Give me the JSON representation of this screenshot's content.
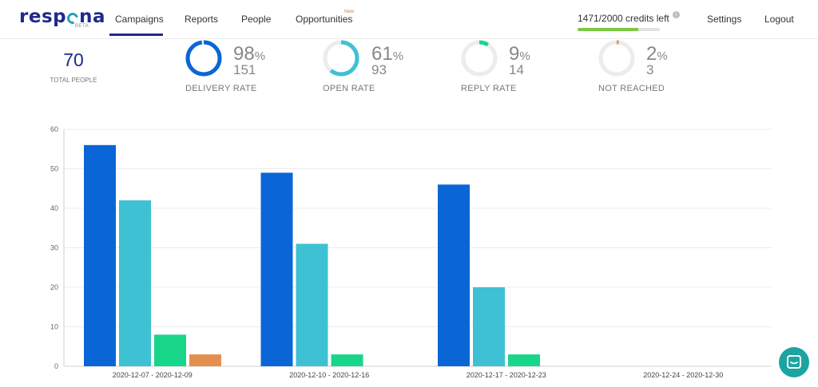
{
  "brand": {
    "name_left": "resp",
    "name_right": "na",
    "tag": "BETA"
  },
  "nav": {
    "campaigns": "Campaigns",
    "reports": "Reports",
    "people": "People",
    "opportunities": "Opportunities",
    "new_badge": "New",
    "credits": "1471/2000 credits left",
    "credits_info": "i",
    "credits_fraction": 0.7355,
    "settings": "Settings",
    "logout": "Logout"
  },
  "stats": {
    "total_value": "70",
    "total_label": "TOTAL PEOPLE",
    "delivery": {
      "pct": "98",
      "count": "151",
      "label": "DELIVERY RATE",
      "value": 0.98,
      "color": "#0a66d6"
    },
    "open": {
      "pct": "61",
      "count": "93",
      "label": "OPEN RATE",
      "value": 0.61,
      "color": "#3ec1d3"
    },
    "reply": {
      "pct": "9",
      "count": "14",
      "label": "REPLY RATE",
      "value": 0.09,
      "color": "#17d68a"
    },
    "not_reached": {
      "pct": "2",
      "count": "3",
      "label": "NOT REACHED",
      "value": 0.02,
      "color": "#e58f4e"
    },
    "pct_sign": "%"
  },
  "chart_data": {
    "type": "bar",
    "categories": [
      "2020-12-07 - 2020-12-09",
      "2020-12-10 - 2020-12-16",
      "2020-12-17 - 2020-12-23",
      "2020-12-24 - 2020-12-30"
    ],
    "series": [
      {
        "values": [
          56,
          49,
          46,
          0
        ],
        "color": "#0a66d6"
      },
      {
        "values": [
          42,
          31,
          20,
          0
        ],
        "color": "#3ec1d3"
      },
      {
        "values": [
          8,
          3,
          3,
          0
        ],
        "color": "#17d68a"
      },
      {
        "values": [
          3,
          0,
          0,
          0
        ],
        "color": "#e58f4e"
      }
    ],
    "ylim": [
      0,
      60
    ],
    "yticks": [
      0,
      10,
      20,
      30,
      40,
      50,
      60
    ],
    "grid": true
  }
}
